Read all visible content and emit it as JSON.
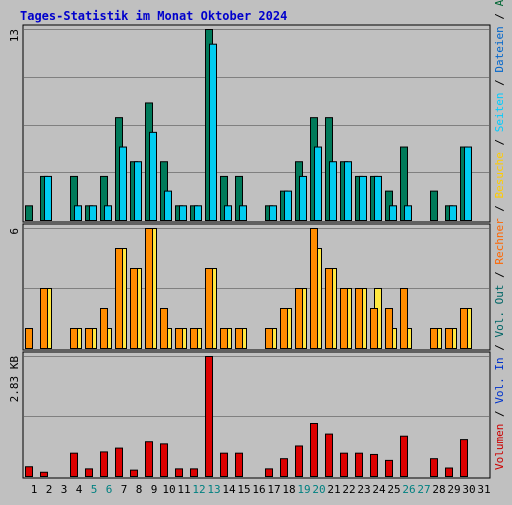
{
  "title": "Tages-Statistik im Monat Oktober 2024",
  "right_legend": {
    "parts": [
      {
        "text": "Volumen",
        "color": "#cc0000"
      },
      {
        "text": " / ",
        "color": "#000000"
      },
      {
        "text": "Vol. In",
        "color": "#0033cc"
      },
      {
        "text": " / ",
        "color": "#000000"
      },
      {
        "text": "Vol. Out",
        "color": "#006666"
      },
      {
        "text": " / ",
        "color": "#000000"
      },
      {
        "text": "Rechner",
        "color": "#ff6600"
      },
      {
        "text": " / ",
        "color": "#000000"
      },
      {
        "text": "Besuche",
        "color": "#ffcc00"
      },
      {
        "text": " / ",
        "color": "#000000"
      },
      {
        "text": "Seiten",
        "color": "#00ccff"
      },
      {
        "text": " / ",
        "color": "#000000"
      },
      {
        "text": "Dateien",
        "color": "#0066cc"
      },
      {
        "text": " / ",
        "color": "#000000"
      },
      {
        "text": "Anfragen",
        "color": "#006633"
      }
    ]
  },
  "colors": {
    "background": "#c0c0c0",
    "title": "#0000cc",
    "grid": "#808080",
    "weekend_day": "#008080",
    "weekday_day": "#000000",
    "anfragen": "#007a5a",
    "seiten": "#00ccf0",
    "besuche": "#ffe840",
    "rechner": "#ff8c00",
    "volumen": "#dd0000"
  },
  "chart_data": [
    {
      "type": "bar",
      "panel": "top",
      "axis_max_label": "13",
      "ylim": [
        0,
        13
      ],
      "categories": [
        "1",
        "2",
        "3",
        "4",
        "5",
        "6",
        "7",
        "8",
        "9",
        "10",
        "11",
        "12",
        "13",
        "14",
        "15",
        "16",
        "17",
        "18",
        "19",
        "20",
        "21",
        "22",
        "23",
        "24",
        "25",
        "26",
        "27",
        "28",
        "29",
        "30",
        "31"
      ],
      "series": [
        {
          "name": "Anfragen",
          "values": [
            1,
            3,
            0,
            3,
            1,
            3,
            7,
            4,
            8,
            4,
            1,
            1,
            13,
            3,
            3,
            0,
            1,
            2,
            4,
            7,
            7,
            4,
            3,
            3,
            2,
            5,
            0,
            2,
            1,
            5,
            0
          ]
        },
        {
          "name": "Seiten",
          "values": [
            0,
            3,
            0,
            1,
            1,
            1,
            5,
            4,
            6,
            2,
            1,
            1,
            12,
            1,
            1,
            0,
            1,
            2,
            3,
            5,
            4,
            4,
            3,
            3,
            1,
            1,
            0,
            0,
            1,
            5,
            0
          ]
        }
      ]
    },
    {
      "type": "bar",
      "panel": "middle",
      "axis_max_label": "6",
      "ylim": [
        0,
        6
      ],
      "categories": [
        "1",
        "2",
        "3",
        "4",
        "5",
        "6",
        "7",
        "8",
        "9",
        "10",
        "11",
        "12",
        "13",
        "14",
        "15",
        "16",
        "17",
        "18",
        "19",
        "20",
        "21",
        "22",
        "23",
        "24",
        "25",
        "26",
        "27",
        "28",
        "29",
        "30",
        "31"
      ],
      "series": [
        {
          "name": "Besuche",
          "values": [
            0,
            3,
            0,
            1,
            1,
            1,
            5,
            4,
            6,
            1,
            1,
            1,
            4,
            1,
            1,
            0,
            1,
            2,
            3,
            5,
            4,
            3,
            3,
            3,
            1,
            1,
            0,
            1,
            1,
            2,
            0
          ]
        },
        {
          "name": "Rechner",
          "values": [
            1,
            3,
            0,
            1,
            1,
            2,
            5,
            4,
            6,
            2,
            1,
            1,
            4,
            1,
            1,
            0,
            1,
            2,
            3,
            6,
            4,
            3,
            3,
            2,
            2,
            3,
            0,
            1,
            1,
            2,
            0
          ]
        }
      ]
    },
    {
      "type": "bar",
      "panel": "bottom",
      "axis_max_label": "2.83 KB",
      "ylim": [
        0,
        2.83
      ],
      "unit": "KB",
      "categories": [
        "1",
        "2",
        "3",
        "4",
        "5",
        "6",
        "7",
        "8",
        "9",
        "10",
        "11",
        "12",
        "13",
        "14",
        "15",
        "16",
        "17",
        "18",
        "19",
        "20",
        "21",
        "22",
        "23",
        "24",
        "25",
        "26",
        "27",
        "28",
        "29",
        "30",
        "31"
      ],
      "series": [
        {
          "name": "Volumen",
          "values": [
            0.23,
            0.1,
            0,
            0.55,
            0.18,
            0.58,
            0.67,
            0.15,
            0.82,
            0.77,
            0.18,
            0.18,
            2.83,
            0.55,
            0.55,
            0,
            0.18,
            0.42,
            0.72,
            1.25,
            1.0,
            0.55,
            0.55,
            0.52,
            0.38,
            0.95,
            0,
            0.42,
            0.2,
            0.87,
            0
          ]
        }
      ]
    }
  ],
  "x_labels": [
    {
      "label": "1",
      "weekend": false
    },
    {
      "label": "2",
      "weekend": false
    },
    {
      "label": "3",
      "weekend": false
    },
    {
      "label": "4",
      "weekend": false
    },
    {
      "label": "5",
      "weekend": true
    },
    {
      "label": "6",
      "weekend": true
    },
    {
      "label": "7",
      "weekend": false
    },
    {
      "label": "8",
      "weekend": false
    },
    {
      "label": "9",
      "weekend": false
    },
    {
      "label": "10",
      "weekend": false
    },
    {
      "label": "11",
      "weekend": false
    },
    {
      "label": "12",
      "weekend": true
    },
    {
      "label": "13",
      "weekend": true
    },
    {
      "label": "14",
      "weekend": false
    },
    {
      "label": "15",
      "weekend": false
    },
    {
      "label": "16",
      "weekend": false
    },
    {
      "label": "17",
      "weekend": false
    },
    {
      "label": "18",
      "weekend": false
    },
    {
      "label": "19",
      "weekend": true
    },
    {
      "label": "20",
      "weekend": true
    },
    {
      "label": "21",
      "weekend": false
    },
    {
      "label": "22",
      "weekend": false
    },
    {
      "label": "23",
      "weekend": false
    },
    {
      "label": "24",
      "weekend": false
    },
    {
      "label": "25",
      "weekend": false
    },
    {
      "label": "26",
      "weekend": true
    },
    {
      "label": "27",
      "weekend": true
    },
    {
      "label": "28",
      "weekend": false
    },
    {
      "label": "29",
      "weekend": false
    },
    {
      "label": "30",
      "weekend": false
    },
    {
      "label": "31",
      "weekend": false
    }
  ]
}
